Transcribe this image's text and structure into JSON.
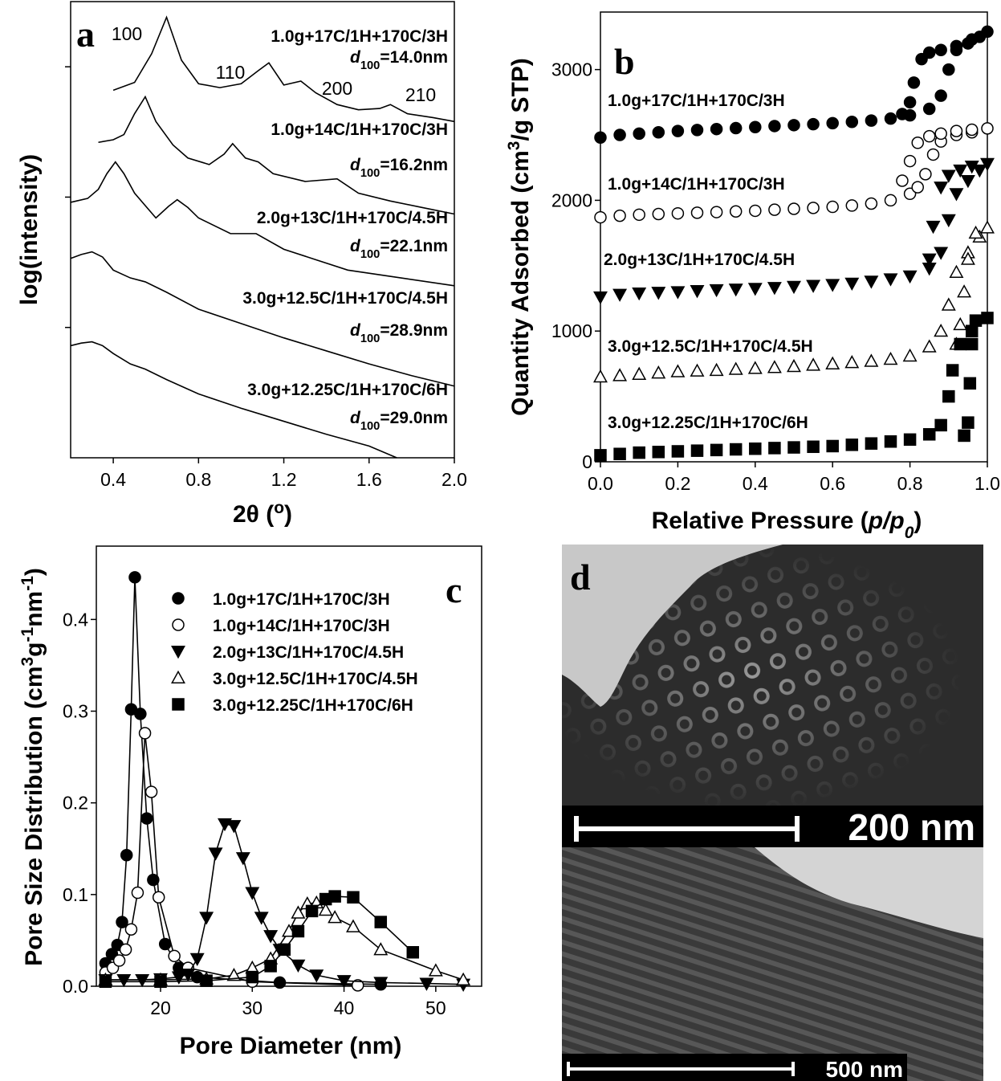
{
  "chart_data": [
    {
      "type": "line",
      "panel_label": "a",
      "xlabel": [
        {
          "text": "2θ ("
        },
        {
          "text": "o",
          "style": "sup"
        },
        {
          "text": ")"
        }
      ],
      "ylabel": [
        {
          "text": "log(intensity)"
        }
      ],
      "xlim": [
        0.2,
        2.0
      ],
      "xticks": [
        0.4,
        0.8,
        1.2,
        1.6,
        {
          "value": 2.0,
          "label": "2.0"
        }
      ],
      "ylim": [
        0,
        3.5
      ],
      "yticks": [
        1,
        2,
        3
      ],
      "ytick_labels": false,
      "annotations": [
        "100",
        "110",
        "200",
        "210"
      ],
      "series": [
        {
          "name": "1.0g+17C/1H+170C/3H",
          "color": "#000000",
          "d_label": [
            {
              "text": "d",
              "style": "italic"
            },
            {
              "text": "100",
              "style": "sub"
            },
            {
              "text": "=14.0nm"
            }
          ],
          "x": [
            0.4,
            0.5,
            0.58,
            0.65,
            0.72,
            0.8,
            0.9,
            1.0,
            1.08,
            1.13,
            1.2,
            1.28,
            1.35,
            1.45,
            1.55,
            1.65,
            1.7,
            1.78,
            1.9,
            2.0
          ],
          "values": [
            2.82,
            2.88,
            3.1,
            3.38,
            3.05,
            2.87,
            2.84,
            2.87,
            2.97,
            3.03,
            2.86,
            2.89,
            2.8,
            2.71,
            2.67,
            2.68,
            2.71,
            2.64,
            2.61,
            2.58
          ]
        },
        {
          "name": "1.0g+14C/1H+170C/3H",
          "color": "#000000",
          "d_label": [
            {
              "text": "d",
              "style": "italic"
            },
            {
              "text": "100",
              "style": "sub"
            },
            {
              "text": "=16.2nm"
            }
          ],
          "x": [
            0.33,
            0.4,
            0.45,
            0.5,
            0.55,
            0.6,
            0.68,
            0.75,
            0.85,
            0.92,
            0.96,
            1.02,
            1.08,
            1.15,
            1.3,
            1.45,
            1.55,
            1.7,
            1.85,
            2.0
          ],
          "values": [
            2.42,
            2.44,
            2.48,
            2.64,
            2.77,
            2.58,
            2.4,
            2.3,
            2.25,
            2.33,
            2.41,
            2.3,
            2.27,
            2.18,
            2.12,
            2.14,
            2.03,
            1.97,
            1.92,
            1.87
          ]
        },
        {
          "name": "2.0g+13C/1H+170C/4.5H",
          "color": "#000000",
          "d_label": [
            {
              "text": "d",
              "style": "italic"
            },
            {
              "text": "100",
              "style": "sub"
            },
            {
              "text": "=22.1nm"
            }
          ],
          "x": [
            0.2,
            0.28,
            0.33,
            0.37,
            0.41,
            0.45,
            0.5,
            0.6,
            0.66,
            0.7,
            0.75,
            0.8,
            0.95,
            1.07,
            1.2,
            1.35,
            1.5,
            1.75,
            2.0
          ],
          "values": [
            1.96,
            1.99,
            2.06,
            2.18,
            2.27,
            2.18,
            2.03,
            1.84,
            1.93,
            1.98,
            1.92,
            1.84,
            1.72,
            1.72,
            1.6,
            1.52,
            1.44,
            1.38,
            1.32
          ]
        },
        {
          "name": "3.0g+12.5C/1H+170C/4.5H",
          "color": "#000000",
          "d_label": [
            {
              "text": "d",
              "style": "italic"
            },
            {
              "text": "100",
              "style": "sub"
            },
            {
              "text": "=28.9nm"
            }
          ],
          "x": [
            0.2,
            0.25,
            0.3,
            0.35,
            0.4,
            0.48,
            0.55,
            0.65,
            0.8,
            1.0,
            1.2,
            1.4,
            1.6,
            1.8,
            2.0
          ],
          "values": [
            1.53,
            1.56,
            1.58,
            1.54,
            1.44,
            1.38,
            1.35,
            1.27,
            1.14,
            1.03,
            0.92,
            0.82,
            0.72,
            0.63,
            0.55
          ]
        },
        {
          "name": "3.0g+12.25C/1H+170C/6H",
          "color": "#000000",
          "d_label": [
            {
              "text": "d",
              "style": "italic"
            },
            {
              "text": "100",
              "style": "sub"
            },
            {
              "text": "=29.0nm"
            }
          ],
          "x": [
            0.2,
            0.25,
            0.3,
            0.35,
            0.4,
            0.48,
            0.55,
            0.65,
            0.8,
            1.0,
            1.2,
            1.4,
            1.6,
            1.73
          ],
          "values": [
            0.86,
            0.88,
            0.89,
            0.86,
            0.8,
            0.72,
            0.68,
            0.6,
            0.49,
            0.38,
            0.28,
            0.18,
            0.09,
            0.0
          ]
        }
      ]
    },
    {
      "type": "scatter",
      "panel_label": "b",
      "xlabel": [
        {
          "text": "Relative Pressure ("
        },
        {
          "text": "p/p",
          "style": "italic"
        },
        {
          "text": "0",
          "style": "sub-italic"
        },
        {
          "text": ")"
        }
      ],
      "ylabel": [
        {
          "text": "Quantity Adsorbed (cm"
        },
        {
          "text": "3",
          "style": "sup"
        },
        {
          "text": "/g STP)"
        }
      ],
      "xlim": [
        0,
        1.0
      ],
      "xticks": [
        {
          "value": 0,
          "label": "0.0"
        },
        0.2,
        0.4,
        0.6,
        0.8,
        {
          "value": 1.0,
          "label": "1.0"
        }
      ],
      "ylim": [
        0,
        3440
      ],
      "yticks": [
        0,
        1000,
        2000,
        3000
      ],
      "series": [
        {
          "name": "1.0g+17C/1H+170C/3H",
          "color": "#000000",
          "marker": "circle-filled",
          "x": [
            0.0,
            0.05,
            0.1,
            0.15,
            0.2,
            0.25,
            0.3,
            0.35,
            0.4,
            0.45,
            0.5,
            0.55,
            0.6,
            0.65,
            0.7,
            0.75,
            0.8,
            0.85,
            0.88,
            0.9,
            0.92,
            0.95,
            0.98,
            1.0,
            0.96,
            0.92,
            0.88,
            0.85,
            0.83,
            0.81,
            0.8,
            0.78
          ],
          "values": [
            2480,
            2500,
            2510,
            2520,
            2530,
            2538,
            2545,
            2552,
            2560,
            2568,
            2575,
            2582,
            2590,
            2600,
            2610,
            2625,
            2650,
            2700,
            2800,
            3000,
            3150,
            3200,
            3250,
            3290,
            3230,
            3180,
            3150,
            3130,
            3080,
            2900,
            2750,
            2660
          ]
        },
        {
          "name": "1.0g+14C/1H+170C/3H",
          "color": "#000000",
          "marker": "circle-open",
          "x": [
            0.0,
            0.05,
            0.1,
            0.15,
            0.2,
            0.25,
            0.3,
            0.35,
            0.4,
            0.45,
            0.5,
            0.55,
            0.6,
            0.65,
            0.7,
            0.75,
            0.8,
            0.82,
            0.84,
            0.86,
            0.88,
            0.92,
            0.96,
            1.0,
            0.96,
            0.92,
            0.88,
            0.85,
            0.82,
            0.8,
            0.78
          ],
          "values": [
            1870,
            1882,
            1890,
            1895,
            1900,
            1905,
            1910,
            1915,
            1920,
            1928,
            1935,
            1942,
            1950,
            1960,
            1975,
            2000,
            2050,
            2100,
            2200,
            2350,
            2450,
            2500,
            2520,
            2550,
            2540,
            2530,
            2510,
            2490,
            2440,
            2300,
            2150
          ]
        },
        {
          "name": "2.0g+13C/1H+170C/4.5H",
          "color": "#000000",
          "marker": "triangle-down-filled",
          "x": [
            0.0,
            0.05,
            0.1,
            0.15,
            0.2,
            0.25,
            0.3,
            0.35,
            0.4,
            0.45,
            0.5,
            0.55,
            0.6,
            0.65,
            0.7,
            0.75,
            0.8,
            0.85,
            0.88,
            0.9,
            0.92,
            0.95,
            0.98,
            1.0,
            0.96,
            0.93,
            0.9,
            0.88,
            0.86,
            0.85
          ],
          "values": [
            1260,
            1280,
            1290,
            1295,
            1300,
            1308,
            1315,
            1320,
            1325,
            1332,
            1340,
            1348,
            1355,
            1365,
            1380,
            1398,
            1420,
            1480,
            1600,
            1850,
            2050,
            2150,
            2230,
            2280,
            2260,
            2230,
            2190,
            2100,
            1800,
            1550
          ]
        },
        {
          "name": "3.0g+12.5C/1H+170C/4.5H",
          "color": "#000000",
          "marker": "triangle-up-open",
          "x": [
            0.0,
            0.05,
            0.1,
            0.15,
            0.2,
            0.25,
            0.3,
            0.35,
            0.4,
            0.45,
            0.5,
            0.55,
            0.6,
            0.65,
            0.7,
            0.75,
            0.8,
            0.85,
            0.88,
            0.9,
            0.92,
            0.95,
            0.98,
            1.0,
            0.97,
            0.95,
            0.94,
            0.93,
            0.92
          ],
          "values": [
            650,
            660,
            670,
            680,
            690,
            695,
            700,
            708,
            715,
            722,
            730,
            740,
            750,
            760,
            770,
            785,
            810,
            880,
            1000,
            1200,
            1450,
            1600,
            1720,
            1790,
            1750,
            1550,
            1300,
            1050,
            900
          ]
        },
        {
          "name": "3.0g+12.25C/1H+170C/6H",
          "color": "#000000",
          "marker": "square-filled",
          "x": [
            0.0,
            0.05,
            0.1,
            0.15,
            0.2,
            0.25,
            0.3,
            0.35,
            0.4,
            0.45,
            0.5,
            0.55,
            0.6,
            0.65,
            0.7,
            0.75,
            0.8,
            0.85,
            0.88,
            0.9,
            0.91,
            0.93,
            0.96,
            1.0,
            0.97,
            0.96,
            0.955,
            0.95,
            0.94
          ],
          "values": [
            50,
            60,
            70,
            75,
            80,
            85,
            90,
            95,
            100,
            105,
            110,
            115,
            120,
            130,
            140,
            155,
            170,
            210,
            280,
            500,
            700,
            900,
            1000,
            1100,
            1080,
            900,
            600,
            300,
            200
          ]
        }
      ]
    },
    {
      "type": "line",
      "markers": true,
      "panel_label": "c",
      "legend": "upper left",
      "xlabel": [
        {
          "text": "Pore Diameter (nm)"
        }
      ],
      "ylabel": [
        {
          "text": "Pore Size Distribution (cm"
        },
        {
          "text": "3",
          "style": "sup"
        },
        {
          "text": "g"
        },
        {
          "text": "-1",
          "style": "sup"
        },
        {
          "text": "nm"
        },
        {
          "text": "-1",
          "style": "sup"
        },
        {
          "text": ")"
        }
      ],
      "xlim": [
        13,
        55
      ],
      "xticks": [
        20,
        30,
        40,
        50
      ],
      "ylim": [
        0,
        0.48
      ],
      "yticks": [
        {
          "value": 0,
          "label": "0.0"
        },
        0.1,
        0.2,
        0.3,
        0.4
      ],
      "series": [
        {
          "name": "1.0g+17C/1H+170C/3H",
          "color": "#000000",
          "marker": "circle-filled",
          "x": [
            14,
            14.7,
            15.3,
            15.8,
            16.3,
            16.8,
            17.2,
            17.8,
            18.5,
            19.2,
            20.5,
            22,
            24,
            33,
            44
          ],
          "values": [
            0.025,
            0.035,
            0.045,
            0.07,
            0.143,
            0.302,
            0.446,
            0.297,
            0.183,
            0.116,
            0.046,
            0.02,
            0.01,
            0.004,
            0.002
          ]
        },
        {
          "name": "1.0g+14C/1H+170C/3H",
          "color": "#000000",
          "marker": "circle-open",
          "x": [
            14,
            14.8,
            15.5,
            16.2,
            16.8,
            17.5,
            18.3,
            19,
            19.8,
            21.5,
            23,
            30,
            41.5
          ],
          "values": [
            0.015,
            0.02,
            0.028,
            0.04,
            0.062,
            0.102,
            0.276,
            0.212,
            0.097,
            0.033,
            0.02,
            0.005,
            0.001
          ]
        },
        {
          "name": "2.0g+13C/1H+170C/4.5H",
          "color": "#000000",
          "marker": "triangle-down-filled",
          "x": [
            14,
            16,
            18,
            20,
            22,
            23,
            24,
            25,
            26,
            27,
            28,
            29,
            30,
            31,
            32,
            33,
            35,
            37,
            40,
            44,
            49,
            53
          ],
          "values": [
            0.007,
            0.007,
            0.007,
            0.008,
            0.01,
            0.013,
            0.03,
            0.075,
            0.145,
            0.177,
            0.175,
            0.14,
            0.102,
            0.075,
            0.055,
            0.04,
            0.023,
            0.012,
            0.006,
            0.004,
            0.003,
            0.002
          ]
        },
        {
          "name": "3.0g+12.5C/1H+170C/4.5H",
          "color": "#000000",
          "marker": "triangle-up-open",
          "x": [
            14,
            20,
            25,
            28,
            30,
            32,
            34,
            35,
            36,
            37,
            38,
            39,
            41,
            44,
            50,
            53
          ],
          "values": [
            0.007,
            0.007,
            0.008,
            0.012,
            0.02,
            0.03,
            0.06,
            0.08,
            0.09,
            0.091,
            0.083,
            0.075,
            0.065,
            0.04,
            0.017,
            0.007
          ]
        },
        {
          "name": "3.0g+12.25C/1H+170C/6H",
          "color": "#000000",
          "marker": "square-filled",
          "x": [
            14,
            20,
            25,
            30,
            32,
            33.5,
            35,
            36.5,
            38,
            39,
            41,
            44,
            47.5
          ],
          "values": [
            0.005,
            0.005,
            0.006,
            0.01,
            0.022,
            0.04,
            0.06,
            0.082,
            0.095,
            0.098,
            0.097,
            0.07,
            0.037
          ]
        }
      ]
    }
  ],
  "panel_d": {
    "label": "d",
    "scale_bars": [
      "200 nm",
      "500 nm"
    ]
  }
}
